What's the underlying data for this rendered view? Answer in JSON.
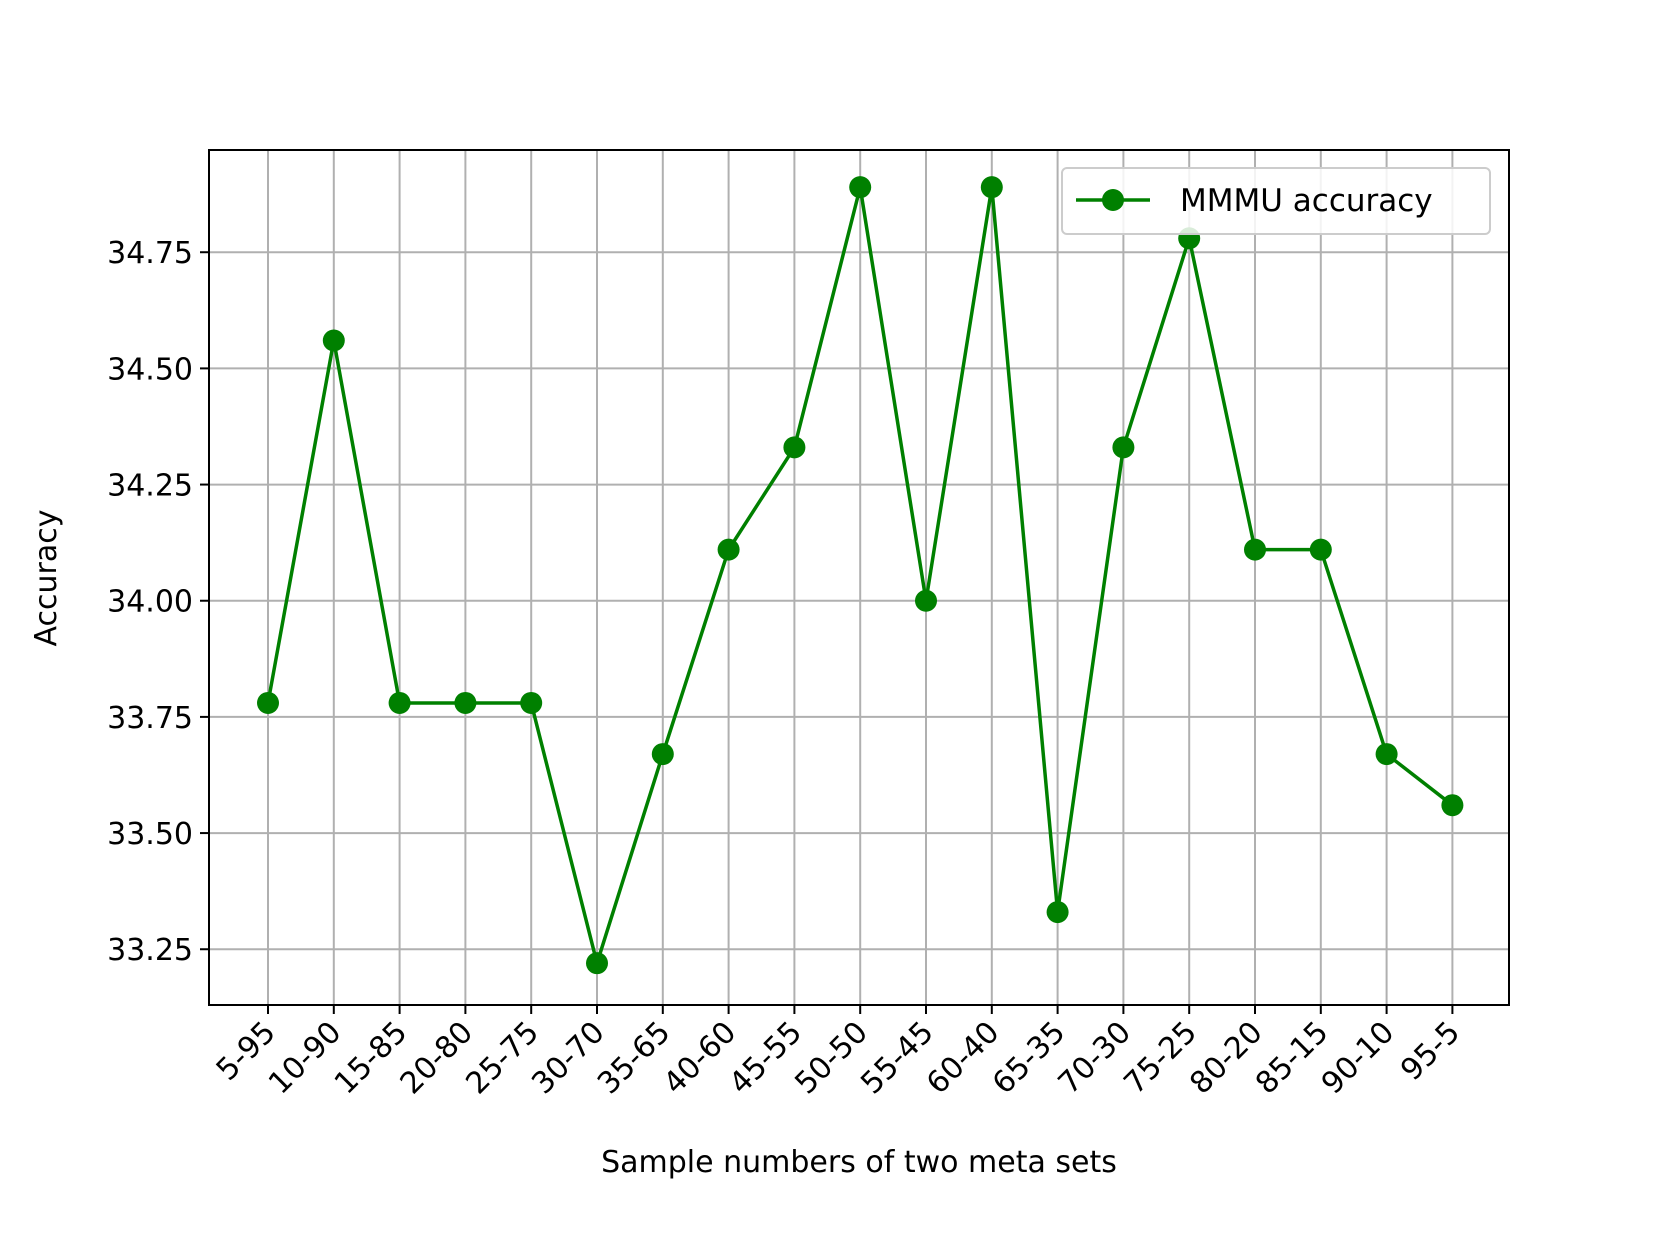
{
  "chart_data": {
    "type": "line",
    "title": "",
    "xlabel": "Sample numbers of two meta sets",
    "ylabel": "Accuracy",
    "categories": [
      "5-95",
      "10-90",
      "15-85",
      "20-80",
      "25-75",
      "30-70",
      "35-65",
      "40-60",
      "45-55",
      "50-50",
      "55-45",
      "60-40",
      "65-35",
      "70-30",
      "75-25",
      "80-20",
      "85-15",
      "90-10",
      "95-5"
    ],
    "series": [
      {
        "name": "MMMU accuracy",
        "color": "#008000",
        "marker": "circle",
        "values": [
          33.78,
          34.56,
          33.78,
          33.78,
          33.78,
          33.22,
          33.67,
          34.11,
          34.33,
          34.89,
          34.0,
          34.89,
          33.33,
          34.33,
          34.78,
          34.11,
          34.11,
          33.67,
          33.56
        ]
      }
    ],
    "ylim": [
      33.13,
      34.97
    ],
    "yticks": [
      33.25,
      33.5,
      33.75,
      34.0,
      34.25,
      34.5,
      34.75
    ],
    "ytick_labels": [
      "33.25",
      "33.50",
      "33.75",
      "34.00",
      "34.25",
      "34.50",
      "34.75"
    ],
    "grid": true,
    "legend_position": "top-right",
    "grid_color": "#b0b0b0"
  }
}
